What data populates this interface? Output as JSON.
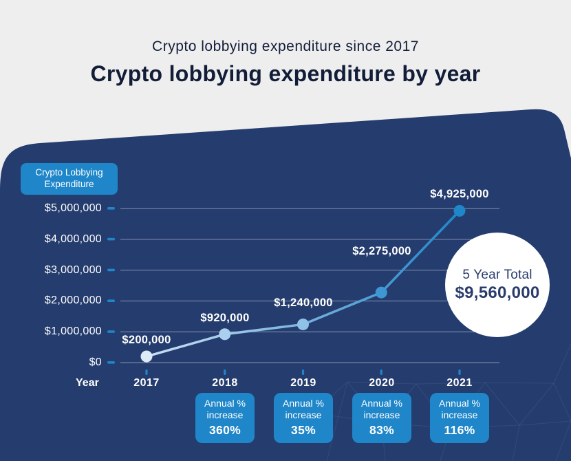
{
  "header": {
    "subtitle": "Crypto lobbying expenditure since 2017",
    "title": "Crypto lobbying expenditure by year"
  },
  "legend_badge": {
    "line1": "Crypto Lobbying",
    "line2": "Expenditure"
  },
  "chart_data": {
    "type": "line",
    "title": "Crypto lobbying expenditure by year",
    "legend": "Crypto Lobbying Expenditure",
    "categories": [
      "2017",
      "2018",
      "2019",
      "2020",
      "2021"
    ],
    "values": [
      200000,
      920000,
      1240000,
      2275000,
      4925000
    ],
    "value_labels": [
      "$200,000",
      "$920,000",
      "$1,240,000",
      "$2,275,000",
      "$4,925,000"
    ],
    "y_ticks": [
      "$5,000,000",
      "$4,000,000",
      "$3,000,000",
      "$2,000,000",
      "$1,000,000",
      "$0"
    ],
    "ylim": [
      0,
      5000000
    ],
    "xlabel": "Year",
    "ylabel": "",
    "grid": true,
    "legend_position": "top-left",
    "annual_increase": [
      {
        "year": "2018",
        "line1": "Annual %",
        "line2": "increase",
        "value": "360%"
      },
      {
        "year": "2019",
        "line1": "Annual %",
        "line2": "increase",
        "value": "35%"
      },
      {
        "year": "2020",
        "line1": "Annual %",
        "line2": "increase",
        "value": "83%"
      },
      {
        "year": "2021",
        "line1": "Annual %",
        "line2": "increase",
        "value": "116%"
      }
    ],
    "total": {
      "label": "5 Year Total",
      "value": "$9,560,000"
    }
  },
  "colors": {
    "page_bg": "#eeeeee",
    "panel_bg": "#253c6e",
    "accent_blue": "#1f86c9",
    "grid": "rgba(255,255,255,0.45)",
    "line_start": "#cde0f4",
    "line_end": "#1f86c9",
    "title_text": "#121d38",
    "total_text": "#2a3c6d",
    "point_colors": [
      "#ddebf8",
      "#abcfee",
      "#90c1e7",
      "#3e97d3",
      "#1f86c9"
    ]
  }
}
